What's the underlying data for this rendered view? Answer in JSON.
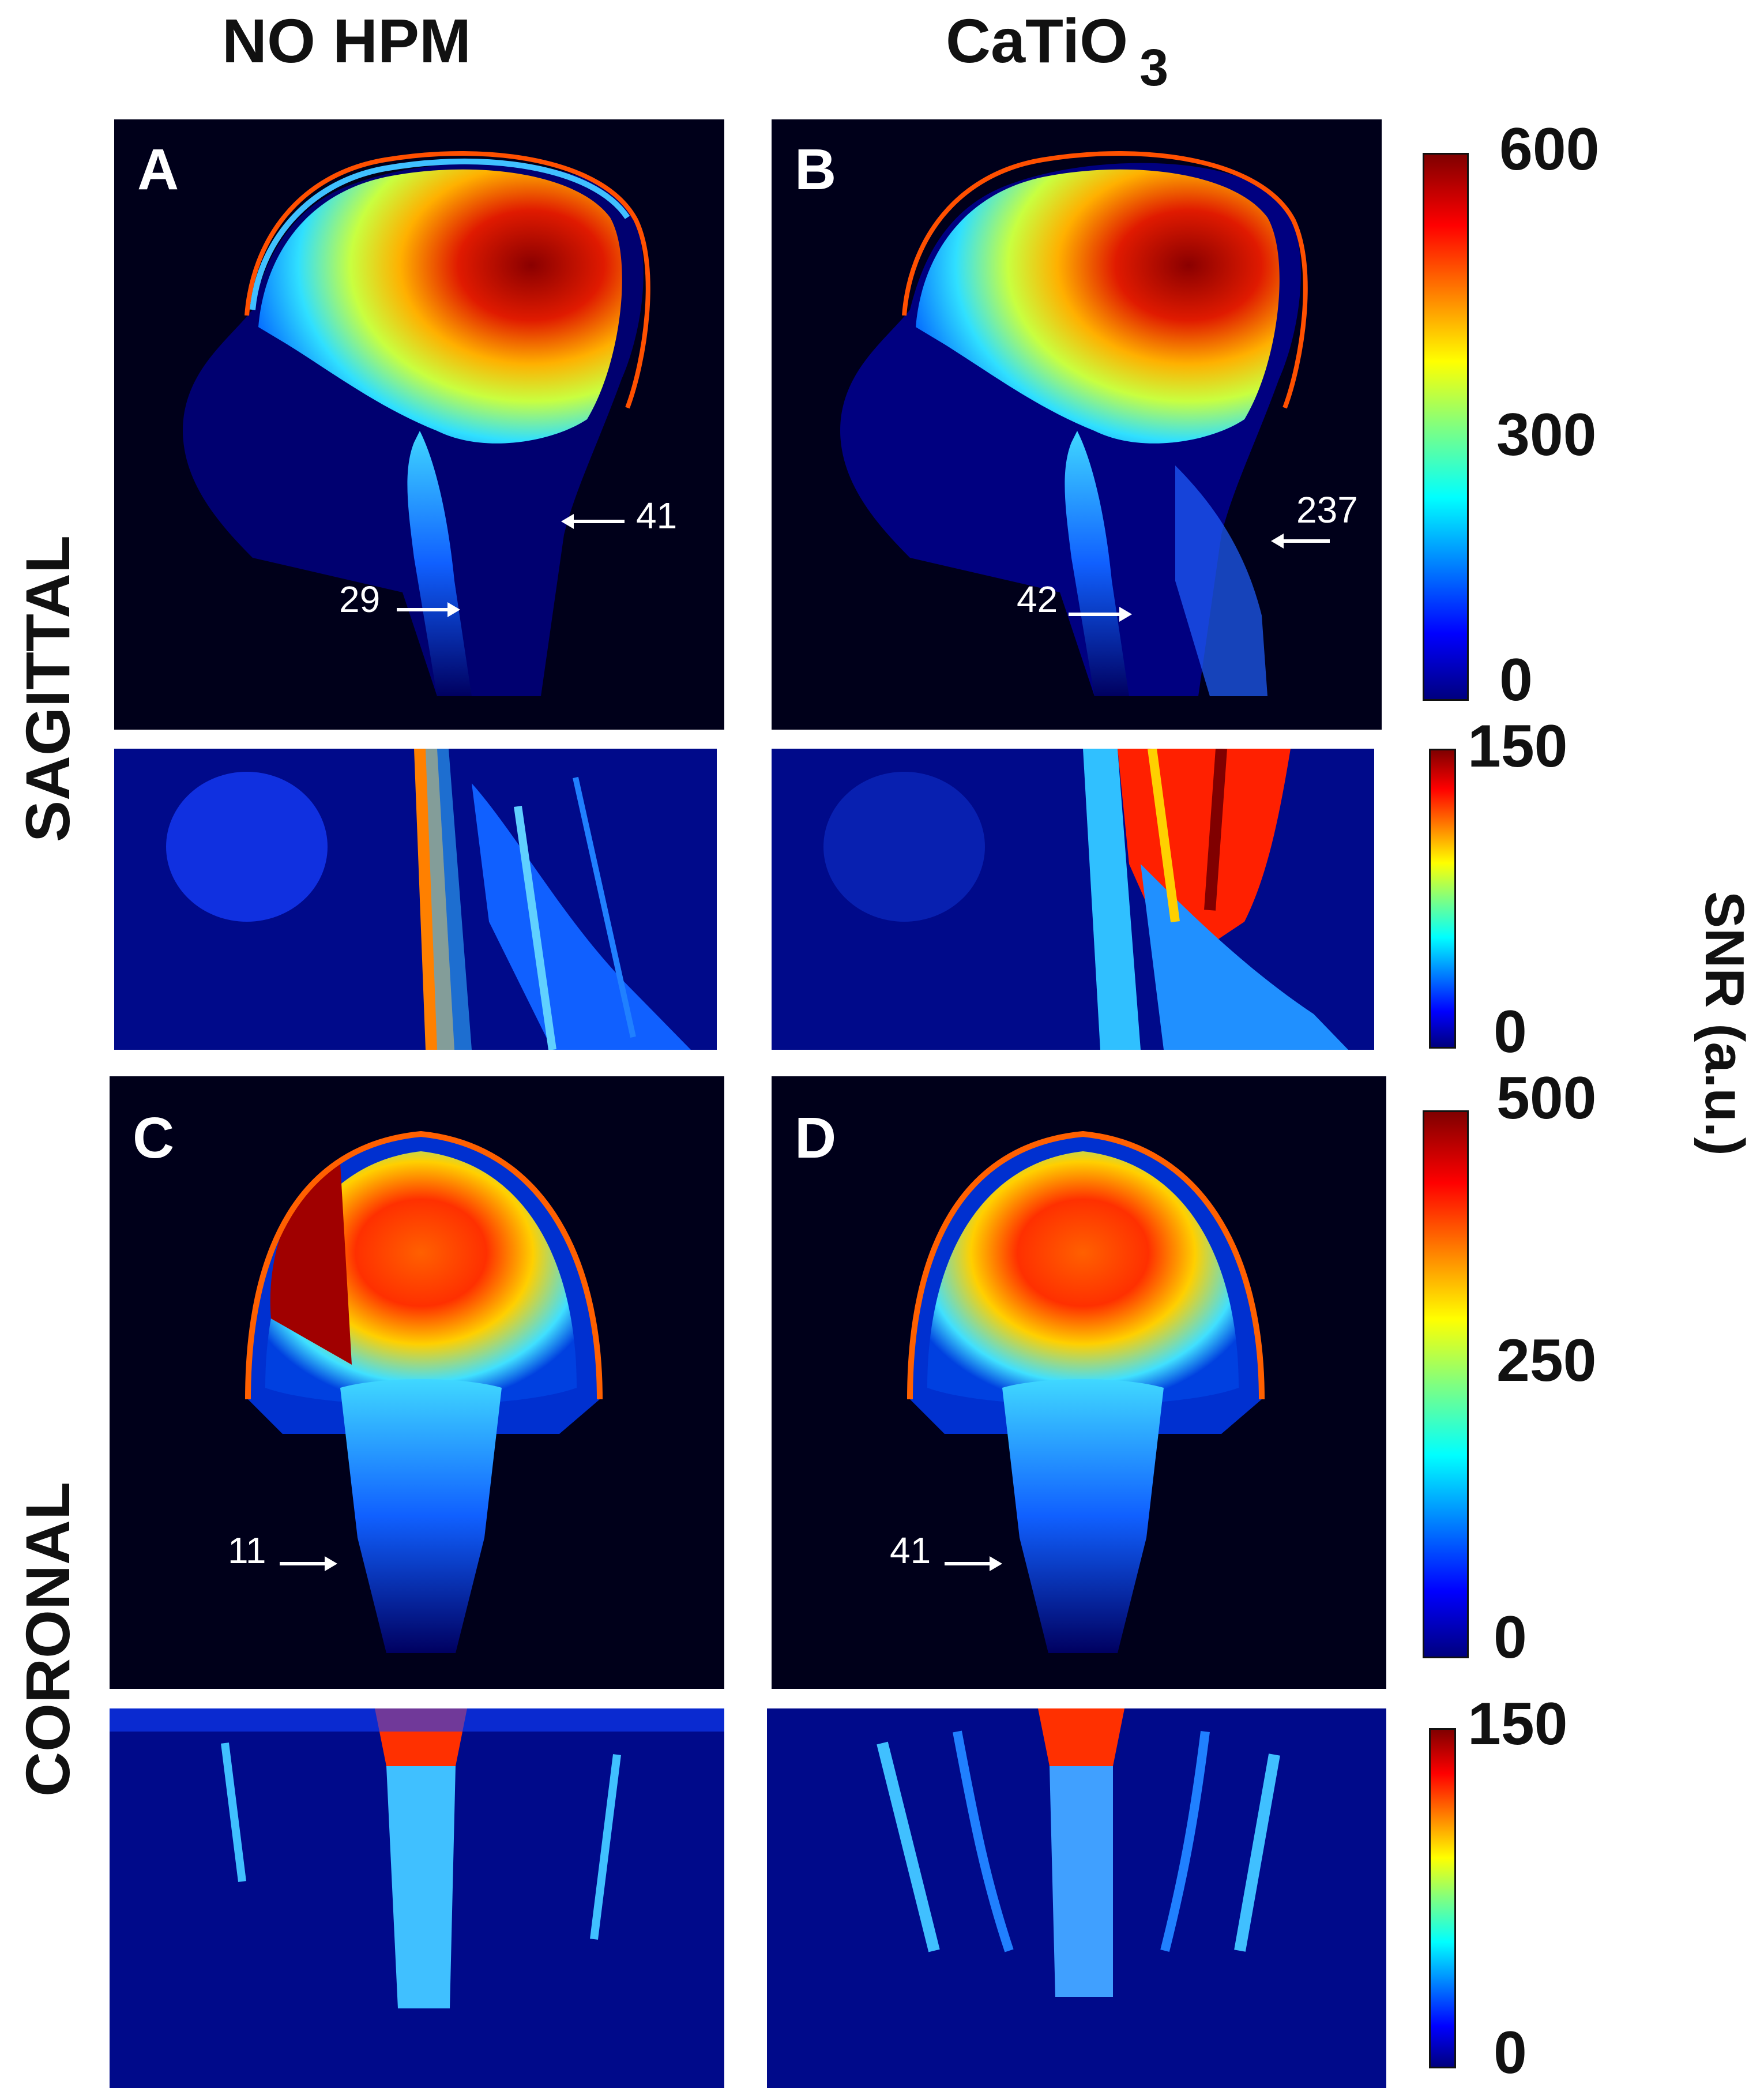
{
  "columns": [
    "NO HPM",
    "CaTiO",
    "3"
  ],
  "rows": [
    "SAGITTAL",
    "CORONAL"
  ],
  "panels": [
    {
      "letter": "A",
      "annotations": [
        "41",
        "29"
      ]
    },
    {
      "letter": "B",
      "annotations": [
        "237",
        "42"
      ]
    },
    {
      "letter": "C",
      "annotations": [
        "11"
      ]
    },
    {
      "letter": "D",
      "annotations": [
        "41"
      ]
    }
  ],
  "colorbars": [
    {
      "max": "600",
      "mid": "300",
      "min": "0"
    },
    {
      "max": "150",
      "min": "0"
    },
    {
      "max": "500",
      "mid": "250",
      "min": "0"
    },
    {
      "max": "150",
      "min": "0"
    }
  ],
  "colorbar_label": "SNR (a.u.)",
  "colormap": [
    "#00007f",
    "#0000ff",
    "#0080ff",
    "#00ffff",
    "#80ff80",
    "#ffff00",
    "#ff8000",
    "#ff0000",
    "#800000"
  ]
}
